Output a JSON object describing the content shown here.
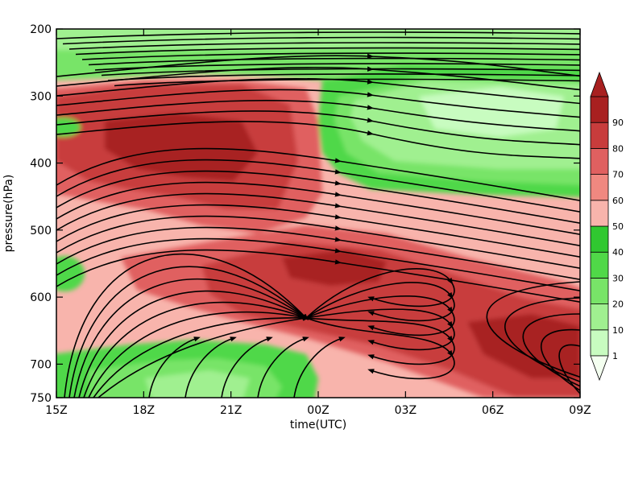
{
  "chart_data": {
    "type": "heatmap",
    "title": "",
    "xlabel": "time(UTC)",
    "ylabel": "pressure(hPa)",
    "x_ticks": [
      "15Z",
      "18Z",
      "21Z",
      "00Z",
      "03Z",
      "06Z",
      "09Z"
    ],
    "y_ticks": [
      "200",
      "300",
      "400",
      "500",
      "600",
      "700",
      "750"
    ],
    "y_tick_values": [
      200,
      300,
      400,
      500,
      600,
      700,
      750
    ],
    "ylim": [
      750,
      200
    ],
    "x_hours": [
      0,
      18
    ],
    "colorbar": {
      "labels": [
        "1",
        "10",
        "20",
        "30",
        "40",
        "50",
        "60",
        "70",
        "80",
        "90"
      ],
      "colors": [
        "#c8fcc0",
        "#a0f090",
        "#78e468",
        "#50d848",
        "#30c830",
        "#f8b4ac",
        "#f08880",
        "#e06060",
        "#c83c3c",
        "#a82020"
      ],
      "extend": "both"
    },
    "overlay": "streamlines",
    "grid": false,
    "legend_position": "right"
  }
}
